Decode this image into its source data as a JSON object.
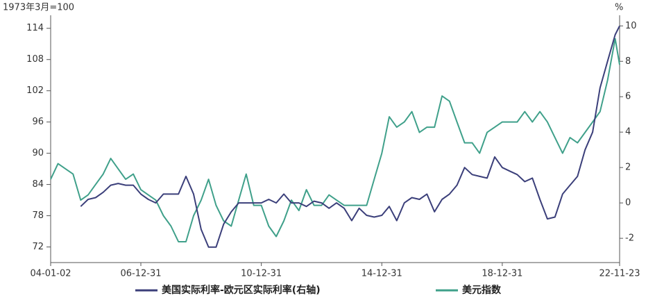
{
  "chart_data": {
    "type": "line",
    "y_label": "1973年3月=100",
    "y2_label": "%",
    "x": [
      "04-01-02",
      "04-03-31",
      "04-06-30",
      "04-09-30",
      "04-12-31",
      "05-03-31",
      "05-06-30",
      "05-09-30",
      "05-12-31",
      "06-03-31",
      "06-06-30",
      "06-09-30",
      "06-12-31",
      "07-03-31",
      "07-06-30",
      "07-09-30",
      "07-12-31",
      "08-03-31",
      "08-06-30",
      "08-09-30",
      "08-12-31",
      "09-03-31",
      "09-06-30",
      "09-09-30",
      "09-12-31",
      "10-03-31",
      "10-06-30",
      "10-09-30",
      "10-12-31",
      "11-03-31",
      "11-06-30",
      "11-09-30",
      "11-12-31",
      "12-03-31",
      "12-06-30",
      "12-09-30",
      "12-12-31",
      "13-03-31",
      "13-06-30",
      "13-09-30",
      "13-12-31",
      "14-03-31",
      "14-06-30",
      "14-09-30",
      "14-12-31",
      "15-03-31",
      "15-06-30",
      "15-09-30",
      "15-12-31",
      "16-03-31",
      "16-06-30",
      "16-09-30",
      "16-12-31",
      "17-03-31",
      "17-06-30",
      "17-09-30",
      "17-12-31",
      "18-03-31",
      "18-06-30",
      "18-09-30",
      "18-12-31",
      "19-03-31",
      "19-06-30",
      "19-09-30",
      "19-12-31",
      "20-03-31",
      "20-06-30",
      "20-09-30",
      "20-12-31",
      "21-03-31",
      "21-06-30",
      "21-09-30",
      "21-12-31",
      "22-03-31",
      "22-06-30",
      "22-09-30",
      "22-11-23"
    ],
    "series": [
      {
        "name": "美国实际利率-欧元区实际利率(右轴)",
        "color": "#3b3f7a",
        "axis": "y2",
        "values": [
          null,
          null,
          null,
          null,
          -0.2,
          0.2,
          0.3,
          0.6,
          1.0,
          1.1,
          1.0,
          1.0,
          0.5,
          0.2,
          0.0,
          0.5,
          0.5,
          0.5,
          1.5,
          0.5,
          -1.5,
          -2.5,
          -2.5,
          -1.2,
          -0.5,
          0.0,
          0.0,
          0.0,
          0.0,
          0.2,
          0.0,
          0.5,
          0.0,
          0.0,
          -0.2,
          0.1,
          0.0,
          -0.3,
          0.0,
          -0.3,
          -1.0,
          -0.3,
          -0.7,
          -0.8,
          -0.7,
          -0.2,
          -1.0,
          0.0,
          0.3,
          0.2,
          0.5,
          -0.5,
          0.2,
          0.5,
          1.0,
          2.0,
          1.6,
          1.5,
          1.4,
          2.6,
          2.0,
          1.8,
          1.6,
          1.2,
          1.4,
          0.2,
          -0.9,
          -0.8,
          0.5,
          1.0,
          1.5,
          3.0,
          4.0,
          6.5,
          8.0,
          9.5,
          10.0
        ]
      },
      {
        "name": "美元指数",
        "color": "#3fa08a",
        "values": [
          85,
          88,
          87,
          86,
          81,
          82,
          84,
          86,
          89,
          87,
          85,
          86,
          83,
          82,
          81,
          78,
          76,
          73,
          73,
          78,
          81,
          85,
          80,
          77,
          76,
          81,
          86,
          80,
          80,
          76,
          74,
          77,
          81,
          79,
          83,
          80,
          80,
          82,
          81,
          80,
          80,
          80,
          80,
          85,
          90,
          97,
          95,
          96,
          98,
          94,
          95,
          95,
          101,
          100,
          96,
          92,
          92,
          90,
          94,
          95,
          96,
          96,
          96,
          98,
          96,
          98,
          96,
          93,
          90,
          93,
          92,
          94,
          96,
          98,
          104,
          112,
          107
        ]
      }
    ],
    "xlim": [
      "04-01-02",
      "22-11-23"
    ],
    "xticks": [
      "04-01-02",
      "06-12-31",
      "10-12-31",
      "14-12-31",
      "18-12-31",
      "22-11-23"
    ],
    "ylim": [
      69,
      116.5
    ],
    "yticks": [
      72,
      78,
      84,
      90,
      96,
      102,
      108,
      114
    ],
    "y2lim": [
      -3.37,
      10.6
    ],
    "y2ticks": [
      -2,
      0,
      2,
      4,
      6,
      8,
      10
    ]
  }
}
